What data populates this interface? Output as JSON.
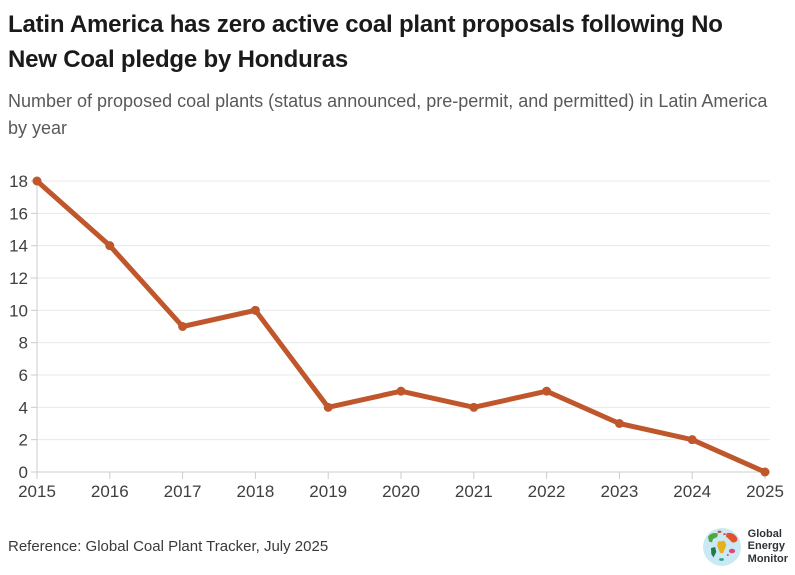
{
  "header": {
    "title": "Latin America has zero active coal plant proposals following No New Coal pledge by Honduras",
    "subtitle": "Number of proposed coal plants (status announced, pre-permit, and permitted) in Latin America by year"
  },
  "chart_data": {
    "type": "line",
    "title": "Latin America has zero active coal plant proposals following No New Coal pledge by Honduras",
    "subtitle": "Number of proposed coal plants (status announced, pre-permit, and permitted) in Latin America by year",
    "x": [
      2015,
      2016,
      2017,
      2018,
      2019,
      2020,
      2021,
      2022,
      2023,
      2024,
      2025
    ],
    "series": [
      {
        "name": "Proposed coal plants",
        "values": [
          18,
          14,
          9,
          10,
          4,
          5,
          4,
          5,
          3,
          2,
          0
        ]
      }
    ],
    "xlabel": "",
    "ylabel": "",
    "ylim": [
      0,
      18
    ],
    "yticks": [
      0,
      2,
      4,
      6,
      8,
      10,
      12,
      14,
      16,
      18
    ],
    "grid": true,
    "legend": "none",
    "line_color": "#c0572c",
    "marker_color": "#c0572c",
    "gridline_color": "#e8e8e8",
    "axis_color": "#cccccc",
    "tick_label_color": "#3f3f3f"
  },
  "footer": {
    "reference": "Reference: Global Coal Plant Tracker, July 2025",
    "logo": {
      "lines": [
        "Global",
        "Energy",
        "Monitor"
      ],
      "globe_color": "#c9e9f4"
    }
  }
}
